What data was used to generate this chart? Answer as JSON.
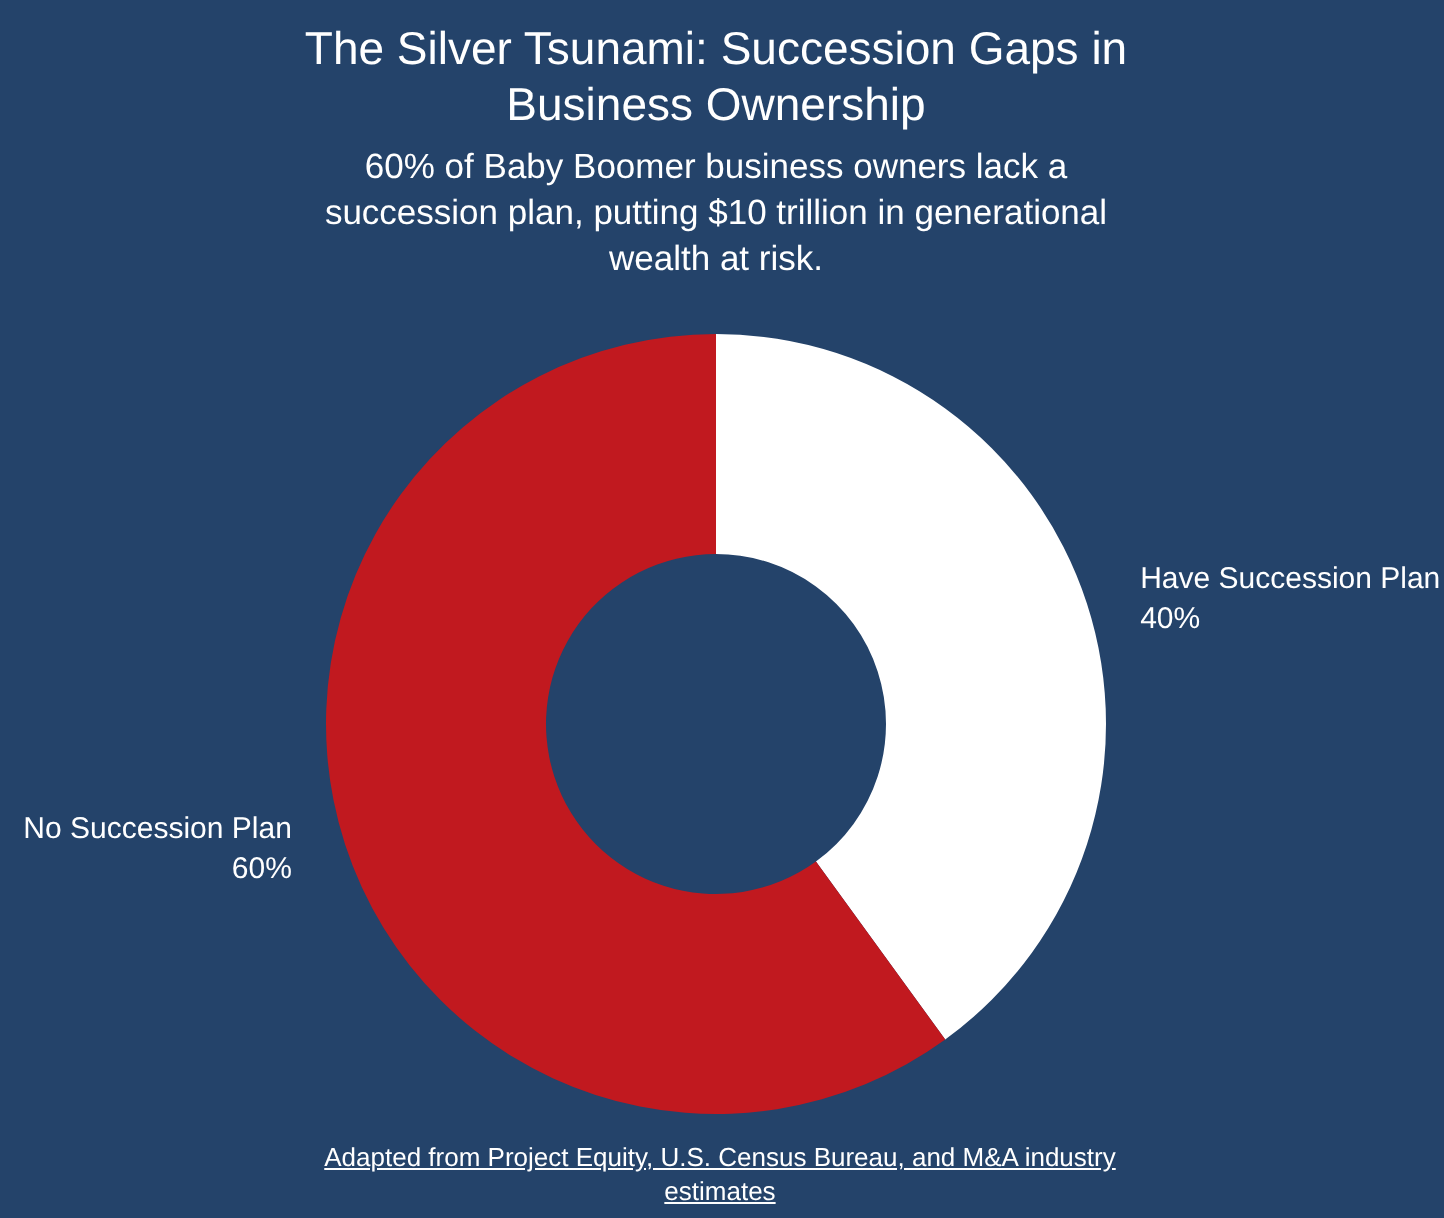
{
  "chart_data": {
    "type": "donut",
    "title": "The Silver Tsunami: Succession Gaps in Business Ownership",
    "subtitle": "60% of Baby Boomer business owners lack a succession plan, putting $10 trillion in generational wealth at risk.",
    "categories": [
      "Have Succession Plan",
      "No Succession Plan"
    ],
    "values": [
      40,
      60
    ],
    "value_labels": [
      "40%",
      "60%"
    ],
    "colors": [
      "#ffffff",
      "#c1191f"
    ],
    "legend": false,
    "annotations": [
      "Adapted from Project Equity, U.S. Census Bureau, and M&A industry estimates"
    ]
  }
}
